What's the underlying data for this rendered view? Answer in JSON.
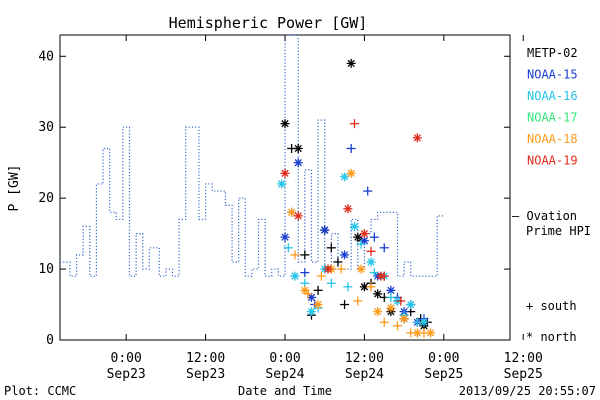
{
  "chart_data": {
    "type": "scatter",
    "title": "Hemispheric Power [GW]",
    "ylabel": "P [GW]",
    "xlabel": "Date and Time",
    "ylim": [
      0,
      43
    ],
    "xlim": [
      -10,
      58
    ],
    "yticks": [
      0,
      10,
      20,
      30,
      40
    ],
    "xticks": [
      {
        "x": 0,
        "line1": "0:00",
        "line2": "Sep23"
      },
      {
        "x": 12,
        "line1": "12:00",
        "line2": "Sep23"
      },
      {
        "x": 24,
        "line1": "0:00",
        "line2": "Sep24"
      },
      {
        "x": 36,
        "line1": "12:00",
        "line2": "Sep24"
      },
      {
        "x": 48,
        "line1": "0:00",
        "line2": "Sep25"
      },
      {
        "x": 60,
        "line1": "12:00",
        "line2": "Sep25"
      }
    ],
    "footer_left": "Plot: CCMC",
    "footer_right": "2013/09/25 20:55:07",
    "ovation": {
      "name": "Ovation Prime HPI",
      "legend_line1": "— Ovation",
      "legend_line2": "Prime HPI",
      "color": "#3366cc",
      "points": [
        [
          -10,
          11
        ],
        [
          -8.5,
          9
        ],
        [
          -7.5,
          12
        ],
        [
          -6.5,
          16
        ],
        [
          -5.5,
          9
        ],
        [
          -4.5,
          22
        ],
        [
          -3.5,
          27
        ],
        [
          -2.5,
          18
        ],
        [
          -1.5,
          17
        ],
        [
          -0.5,
          30
        ],
        [
          0.5,
          9
        ],
        [
          1.5,
          15
        ],
        [
          2.5,
          10
        ],
        [
          3.5,
          13
        ],
        [
          5,
          9
        ],
        [
          6,
          10
        ],
        [
          7,
          9
        ],
        [
          8,
          17
        ],
        [
          9,
          30
        ],
        [
          11,
          17
        ],
        [
          12,
          22
        ],
        [
          13,
          21
        ],
        [
          15,
          19
        ],
        [
          16,
          11
        ],
        [
          17,
          20
        ],
        [
          18,
          9
        ],
        [
          19,
          10
        ],
        [
          20,
          17
        ],
        [
          21,
          9
        ],
        [
          22,
          10
        ],
        [
          23,
          9
        ],
        [
          24,
          43
        ],
        [
          26,
          11
        ],
        [
          27,
          24
        ],
        [
          28,
          11
        ],
        [
          29,
          31
        ],
        [
          30,
          10
        ],
        [
          31,
          15
        ],
        [
          32,
          10
        ],
        [
          34,
          17
        ],
        [
          35,
          10
        ],
        [
          36,
          15
        ],
        [
          37,
          17
        ],
        [
          38,
          18
        ],
        [
          39,
          18
        ],
        [
          40,
          18
        ],
        [
          41,
          9
        ],
        [
          42,
          11
        ],
        [
          43,
          9
        ],
        [
          46,
          9
        ],
        [
          47,
          17.5
        ]
      ]
    },
    "legend_sats": [
      {
        "name": "METP-02",
        "color": "#000000"
      },
      {
        "name": "NOAA-15",
        "color": "#1a3fd0"
      },
      {
        "name": "NOAA-16",
        "color": "#22c4e8"
      },
      {
        "name": "NOAA-17",
        "color": "#33e87a"
      },
      {
        "name": "NOAA-18",
        "color": "#ff9a1a"
      },
      {
        "name": "NOAA-19",
        "color": "#e02a1a"
      }
    ],
    "marker_legend": [
      {
        "symbol": "+",
        "label": "south"
      },
      {
        "symbol": "*",
        "label": "north"
      }
    ],
    "observations": [
      {
        "sat": 0,
        "hem": "north",
        "points": [
          [
            24,
            30.5
          ],
          [
            26,
            27
          ],
          [
            30,
            15.5
          ],
          [
            34,
            39
          ],
          [
            35,
            14.5
          ],
          [
            36,
            7.5
          ],
          [
            38,
            6.5
          ],
          [
            40,
            4
          ],
          [
            42,
            3
          ],
          [
            45,
            2
          ]
        ]
      },
      {
        "sat": 0,
        "hem": "south",
        "points": [
          [
            25,
            27
          ],
          [
            27,
            12
          ],
          [
            28,
            3.5
          ],
          [
            29,
            7
          ],
          [
            31,
            13
          ],
          [
            32,
            11
          ],
          [
            33,
            5
          ],
          [
            35.5,
            14
          ],
          [
            37,
            8
          ],
          [
            39,
            6
          ],
          [
            41,
            5.5
          ],
          [
            43,
            4
          ],
          [
            44.5,
            3
          ],
          [
            45.5,
            2.5
          ]
        ]
      },
      {
        "sat": 1,
        "hem": "north",
        "points": [
          [
            24,
            14.5
          ],
          [
            26,
            25
          ],
          [
            28,
            6
          ],
          [
            30,
            15.5
          ],
          [
            33,
            12
          ],
          [
            36,
            14
          ],
          [
            38,
            9
          ],
          [
            40,
            7
          ],
          [
            42,
            4
          ],
          [
            44,
            2.5
          ]
        ]
      },
      {
        "sat": 1,
        "hem": "south",
        "points": [
          [
            25,
            18
          ],
          [
            27,
            9.5
          ],
          [
            28.5,
            5
          ],
          [
            31,
            10
          ],
          [
            34,
            27
          ],
          [
            36.5,
            21
          ],
          [
            37.5,
            14.5
          ],
          [
            39,
            13
          ],
          [
            41,
            6
          ],
          [
            43,
            5
          ],
          [
            45,
            3
          ]
        ]
      },
      {
        "sat": 2,
        "hem": "north",
        "points": [
          [
            23.5,
            22
          ],
          [
            25.5,
            9
          ],
          [
            28,
            4
          ],
          [
            30,
            10
          ],
          [
            33,
            23
          ],
          [
            34.5,
            16
          ],
          [
            37,
            11
          ],
          [
            39,
            9
          ],
          [
            41,
            5.5
          ],
          [
            43,
            5
          ],
          [
            45,
            2.5
          ]
        ]
      },
      {
        "sat": 2,
        "hem": "south",
        "points": [
          [
            24.5,
            13
          ],
          [
            27,
            8
          ],
          [
            29,
            4.5
          ],
          [
            31,
            8
          ],
          [
            33.5,
            7.5
          ],
          [
            35.5,
            13.5
          ],
          [
            37.5,
            9.5
          ],
          [
            40,
            6
          ],
          [
            42,
            3.5
          ],
          [
            44,
            2.5
          ]
        ]
      },
      {
        "sat": 4,
        "hem": "north",
        "points": [
          [
            25,
            18
          ],
          [
            27,
            7
          ],
          [
            29,
            5
          ],
          [
            31,
            10
          ],
          [
            34,
            23.5
          ],
          [
            35.5,
            10
          ],
          [
            38,
            4
          ],
          [
            40,
            4.5
          ],
          [
            42,
            3
          ],
          [
            44,
            1
          ],
          [
            46,
            1
          ]
        ]
      },
      {
        "sat": 4,
        "hem": "south",
        "points": [
          [
            25.5,
            12
          ],
          [
            27.5,
            6.5
          ],
          [
            29.5,
            9
          ],
          [
            32.5,
            10
          ],
          [
            35,
            5.5
          ],
          [
            37,
            7.5
          ],
          [
            39,
            2.5
          ],
          [
            41,
            2
          ],
          [
            43,
            1
          ],
          [
            45,
            1
          ]
        ]
      },
      {
        "sat": 5,
        "hem": "north",
        "points": [
          [
            24,
            23.5
          ],
          [
            26,
            17.5
          ],
          [
            30.5,
            10
          ],
          [
            33.5,
            18.5
          ],
          [
            36,
            15
          ],
          [
            38.5,
            9
          ],
          [
            44,
            28.5
          ]
        ]
      },
      {
        "sat": 5,
        "hem": "south",
        "points": [
          [
            34.5,
            30.5
          ],
          [
            37,
            12.5
          ],
          [
            39,
            9
          ],
          [
            41.5,
            5.5
          ]
        ]
      }
    ]
  }
}
